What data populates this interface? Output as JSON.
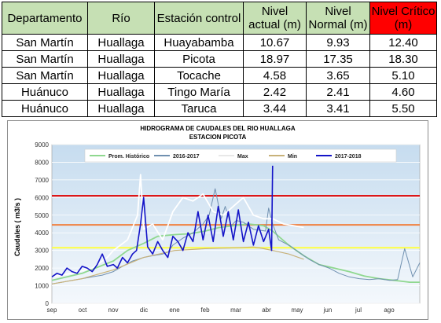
{
  "table": {
    "headers": [
      {
        "line1": "Departamento",
        "line2": ""
      },
      {
        "line1": "Río",
        "line2": ""
      },
      {
        "line1": "Estación control",
        "line2": ""
      },
      {
        "line1": "Nivel",
        "line2": "actual (m)"
      },
      {
        "line1": "Nivel",
        "line2": "Normal (m)"
      },
      {
        "line1": "Nivel Crítico",
        "line2": "(m)"
      }
    ],
    "rows": [
      [
        "San Martín",
        "Huallaga",
        "Huayabamba",
        "10.67",
        "9.93",
        "12.40"
      ],
      [
        "San Martín",
        "Huallaga",
        "Picota",
        "18.97",
        "17.35",
        "18.30"
      ],
      [
        "San Martín",
        "Huallaga",
        "Tocache",
        "4.58",
        "3.65",
        "5.10"
      ],
      [
        "Huánuco",
        "Huallaga",
        "Tingo María",
        "2.42",
        "2.41",
        "4.60"
      ],
      [
        "Huánuco",
        "Huallaga",
        "Taruca",
        "3.44",
        "3.41",
        "5.50"
      ]
    ],
    "header_color": "#c6e0b4",
    "critical_color": "#ff0000"
  },
  "chart_data": {
    "type": "line",
    "title": "HIDROGRAMA DE CAUDALES DEL RIO HUALLAGA",
    "subtitle": "ESTACION  PICOTA",
    "ylabel": "Caudales ( m3/s )",
    "xlabel": "",
    "ylim": [
      0,
      9000
    ],
    "yticks": [
      0,
      1000,
      2000,
      3000,
      4000,
      5000,
      6000,
      7000,
      8000,
      9000
    ],
    "xlim": [
      0,
      365
    ],
    "categories": [
      "sep",
      "oct",
      "nov",
      "dic",
      "ene",
      "feb",
      "mar",
      "abr",
      "may",
      "jun",
      "jul",
      "ago"
    ],
    "grid": true,
    "legend_position": "top",
    "thresholds": [
      {
        "value": 6100,
        "color": "#e00000"
      },
      {
        "value": 4450,
        "color": "#f08040"
      },
      {
        "value": 3150,
        "color": "#ffff40"
      }
    ],
    "series": [
      {
        "name": "Prom. Histórico",
        "color": "#8fd88f",
        "width": 1.8,
        "x": [
          0,
          30,
          61,
          75,
          91,
          105,
          122,
          138,
          152,
          166,
          180,
          195,
          210,
          219,
          235,
          250,
          265,
          280,
          295,
          310,
          325,
          340,
          355,
          365
        ],
        "y": [
          1300,
          1700,
          2400,
          3000,
          3400,
          3800,
          3900,
          3950,
          4100,
          4300,
          4400,
          4500,
          4400,
          4100,
          3300,
          2700,
          2200,
          2000,
          1800,
          1550,
          1400,
          1300,
          1200,
          1200
        ]
      },
      {
        "name": "2016-2017",
        "color": "#7090b0",
        "width": 1.0,
        "x": [
          0,
          10,
          20,
          30,
          40,
          50,
          61,
          70,
          80,
          91,
          100,
          110,
          115,
          120,
          130,
          140,
          150,
          156,
          162,
          168,
          172,
          178,
          183,
          190,
          200,
          212,
          215,
          219,
          225,
          235,
          245,
          255,
          265,
          275,
          285,
          295,
          305,
          315,
          325,
          335,
          343,
          350,
          358,
          365
        ],
        "y": [
          1100,
          1200,
          1300,
          1400,
          1500,
          1600,
          1800,
          2100,
          2400,
          2600,
          2700,
          2800,
          2900,
          3300,
          3700,
          4000,
          4500,
          5000,
          6500,
          4800,
          5500,
          4400,
          4700,
          4600,
          4200,
          4100,
          5400,
          4500,
          3600,
          3300,
          2900,
          2500,
          2200,
          2000,
          1700,
          1500,
          1400,
          1350,
          1400,
          1300,
          1350,
          3100,
          1500,
          2300
        ]
      },
      {
        "name": "Max",
        "color": "#ffffff",
        "width": 1.8,
        "x": [
          0,
          20,
          40,
          55,
          61,
          75,
          85,
          88,
          91,
          100,
          110,
          120,
          130,
          140,
          150,
          160,
          170,
          180,
          190,
          200,
          210,
          219,
          230,
          250
        ],
        "y": [
          1500,
          1700,
          2000,
          2600,
          3000,
          3600,
          5000,
          7300,
          4200,
          4500,
          3600,
          5200,
          6000,
          5800,
          6200,
          5200,
          5000,
          5500,
          6000,
          5000,
          4800,
          4800,
          4500,
          4300
        ]
      },
      {
        "name": "Min",
        "color": "#c8b27a",
        "width": 1.2,
        "x": [
          0,
          30,
          61,
          91,
          122,
          152,
          182,
          200,
          210,
          219,
          235,
          250
        ],
        "y": [
          1100,
          1400,
          1900,
          2600,
          3000,
          3100,
          3150,
          3200,
          3100,
          3000,
          2800,
          2500
        ]
      },
      {
        "name": "2017-2018",
        "color": "#1414c8",
        "width": 1.6,
        "x": [
          0,
          5,
          10,
          15,
          20,
          25,
          30,
          35,
          40,
          45,
          50,
          55,
          61,
          65,
          70,
          75,
          80,
          84,
          88,
          91,
          95,
          100,
          105,
          110,
          115,
          120,
          125,
          130,
          135,
          140,
          145,
          150,
          155,
          160,
          165,
          170,
          175,
          180,
          185,
          190,
          195,
          200,
          205,
          210,
          215,
          218,
          219
        ],
        "y": [
          1500,
          1700,
          1600,
          2000,
          1800,
          1700,
          2100,
          2000,
          1800,
          2200,
          2800,
          2100,
          2200,
          2000,
          2600,
          2300,
          2800,
          3000,
          4500,
          6000,
          3200,
          2800,
          3500,
          3000,
          2600,
          3800,
          3500,
          3000,
          4000,
          3500,
          5200,
          3600,
          5000,
          3500,
          5500,
          3800,
          5200,
          3600,
          5300,
          3500,
          4600,
          3300,
          4400,
          3500,
          4200,
          3000,
          7800
        ]
      }
    ]
  }
}
